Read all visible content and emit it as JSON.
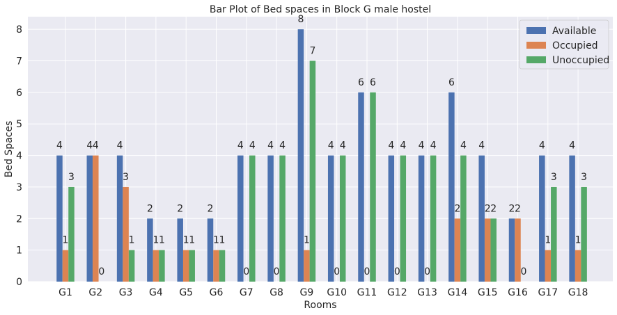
{
  "chart_data": {
    "type": "bar",
    "title": "Bar Plot of Bed spaces in Block G male hostel",
    "xlabel": "Rooms",
    "ylabel": "Bed Spaces",
    "ylim": [
      0,
      8.4
    ],
    "yticks": [
      0,
      1,
      2,
      3,
      4,
      5,
      6,
      7,
      8
    ],
    "grid": true,
    "legend_position": "top-right",
    "categories": [
      "G1",
      "G2",
      "G3",
      "G4",
      "G5",
      "G6",
      "G7",
      "G8",
      "G9",
      "G10",
      "G11",
      "G12",
      "G13",
      "G14",
      "G15",
      "G16",
      "G17",
      "G18"
    ],
    "series": [
      {
        "name": "Available",
        "color": "#4c72b0",
        "values": [
          4,
          4,
          4,
          2,
          2,
          2,
          4,
          4,
          8,
          4,
          6,
          4,
          4,
          6,
          4,
          2,
          4,
          4
        ]
      },
      {
        "name": "Occupied",
        "color": "#dd8452",
        "values": [
          1,
          4,
          3,
          1,
          1,
          1,
          0,
          0,
          1,
          0,
          0,
          0,
          0,
          2,
          2,
          2,
          1,
          1
        ]
      },
      {
        "name": "Unoccupied",
        "color": "#55a868",
        "values": [
          3,
          0,
          1,
          1,
          1,
          1,
          4,
          4,
          7,
          4,
          6,
          4,
          4,
          4,
          2,
          0,
          3,
          3
        ]
      }
    ],
    "colors": {
      "background": "#eaeaf2",
      "grid": "#ffffff"
    }
  }
}
